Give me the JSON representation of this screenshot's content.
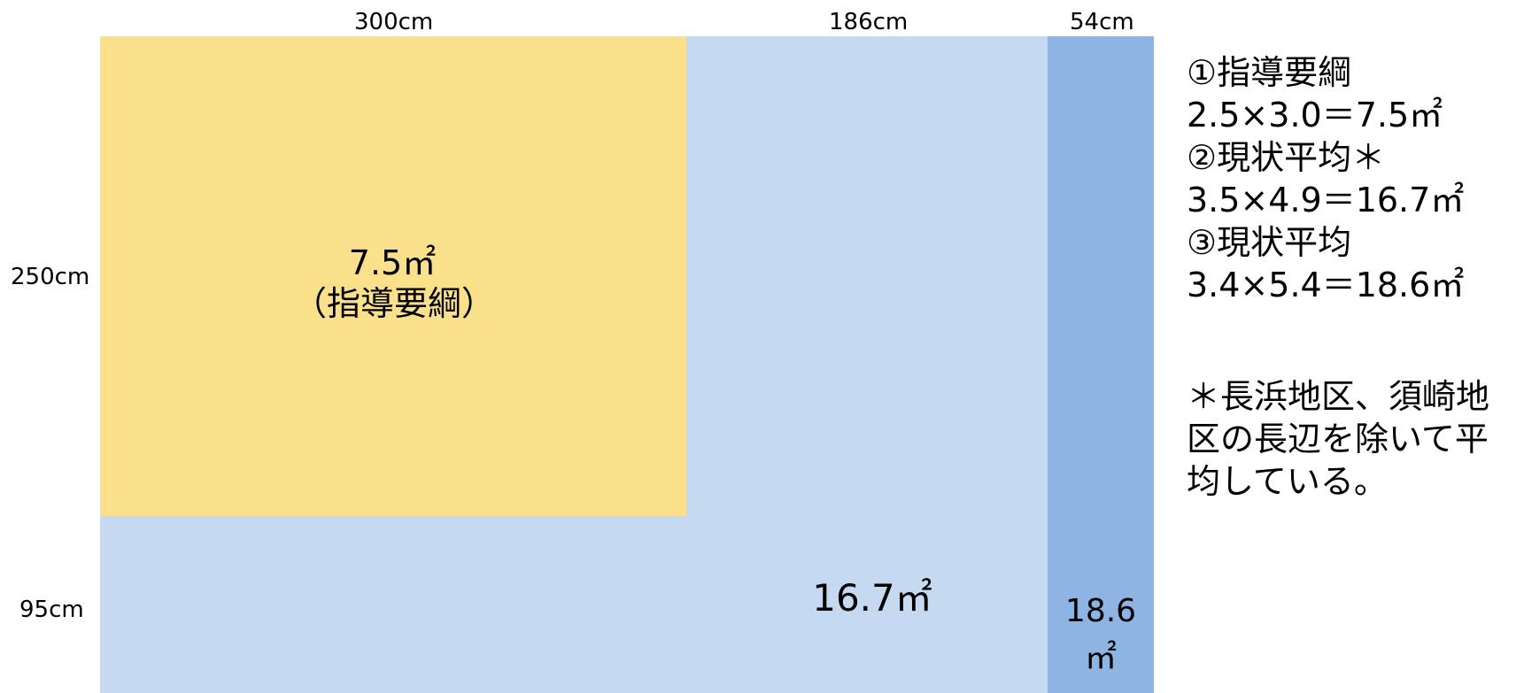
{
  "dimensions": {
    "top": [
      "300cm",
      "186cm",
      "54cm"
    ],
    "left": [
      "250cm",
      "95cm"
    ]
  },
  "areas": {
    "guideline": {
      "value": "7.5㎡",
      "label": "（指導要綱）"
    },
    "current_avg_2": {
      "value": "16.7㎡"
    },
    "current_avg_3": {
      "value_line1": "18.6",
      "value_line2": "㎡"
    }
  },
  "notes": {
    "lines": [
      "①指導要綱",
      "2.5×3.0＝7.5㎡",
      "②現状平均＊",
      "3.5×4.9＝16.7㎡",
      "③現状平均",
      "3.4×5.4＝18.6㎡"
    ],
    "footnote": "＊長浜地区、須崎地区の長辺を除いて平均している。"
  },
  "colors": {
    "guideline_fill": "#FBE08C",
    "area2_fill": "#C5D9F0",
    "area3_fill": "#8EB4E3"
  }
}
